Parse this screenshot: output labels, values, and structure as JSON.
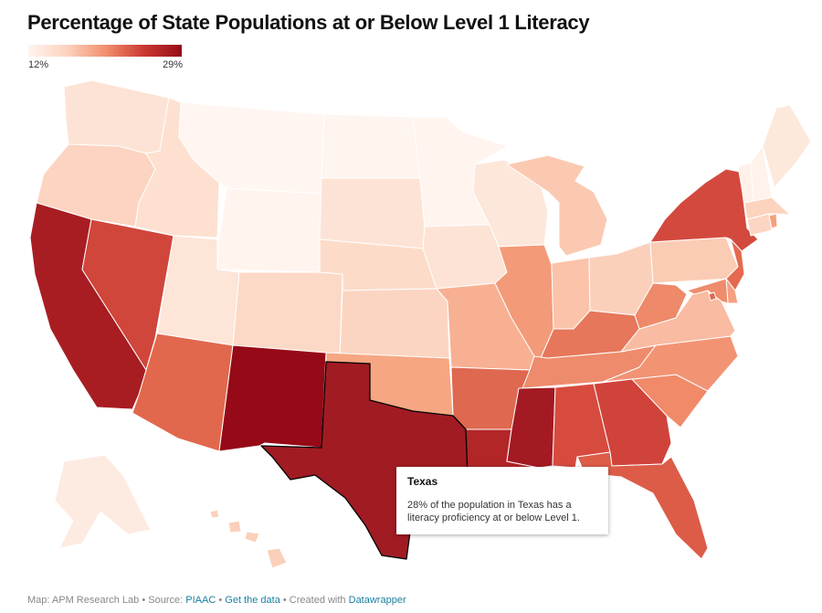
{
  "title": "Percentage of State Populations at or Below Level 1 Literacy",
  "legend": {
    "min_label": "12%",
    "max_label": "29%",
    "min_value": 12,
    "max_value": 29,
    "colors": [
      "#fff5ef",
      "#fcd3c0",
      "#f2906f",
      "#cb3a33",
      "#950b17"
    ]
  },
  "tooltip": {
    "state": "Texas",
    "text": "28% of the population in Texas has a literacy proficiency at or below Level 1."
  },
  "footer": {
    "map_credit": "Map: APM Research Lab",
    "source_prefix": "Source:",
    "source": "PIAAC",
    "get_data": "Get the data",
    "created_prefix": "Created with",
    "created_with": "Datawrapper",
    "separator": "•"
  },
  "highlighted_state": "TX",
  "state_colors": {
    "WA": "#fde3d5",
    "OR": "#fcd4c1",
    "CA": "#a81d22",
    "NV": "#d0463b",
    "ID": "#fde0d0",
    "MT": "#fff6f1",
    "WY": "#fff4ee",
    "UT": "#fde5d8",
    "AZ": "#e2684d",
    "NM": "#960917",
    "CO": "#fcd9c6",
    "ND": "#fff5ef",
    "SD": "#fde3d5",
    "NE": "#fcdcc9",
    "KS": "#fcd5c2",
    "OK": "#f6a682",
    "TX": "#a11b23",
    "MN": "#fff4ee",
    "IA": "#fde3d5",
    "MO": "#f8b092",
    "AR": "#de6850",
    "LA": "#b32628",
    "WI": "#fde7db",
    "IL": "#f39a79",
    "MS": "#a41a22",
    "MI": "#fbc9b1",
    "IN": "#fbc3a9",
    "OH": "#fbd0bb",
    "KY": "#e6775a",
    "TN": "#ee8b6c",
    "AL": "#d74b3f",
    "GA": "#d0433a",
    "FL": "#dc5c48",
    "SC": "#f08a69",
    "NC": "#f29474",
    "VA": "#f9bba1",
    "WV": "#ee8969",
    "PA": "#fbccb4",
    "NY": "#d3493e",
    "ME": "#fde8dc",
    "VT": "#fff1ea",
    "NH": "#fff2eb",
    "MA": "#fcd3be",
    "CT": "#fcd6c3",
    "RI": "#f6a07f",
    "NJ": "#e5694f",
    "DE": "#f5a081",
    "MD": "#ee8c6c",
    "DC": "#e06a52",
    "AK": "#fdebe2",
    "HI": "#fbd0bb"
  }
}
